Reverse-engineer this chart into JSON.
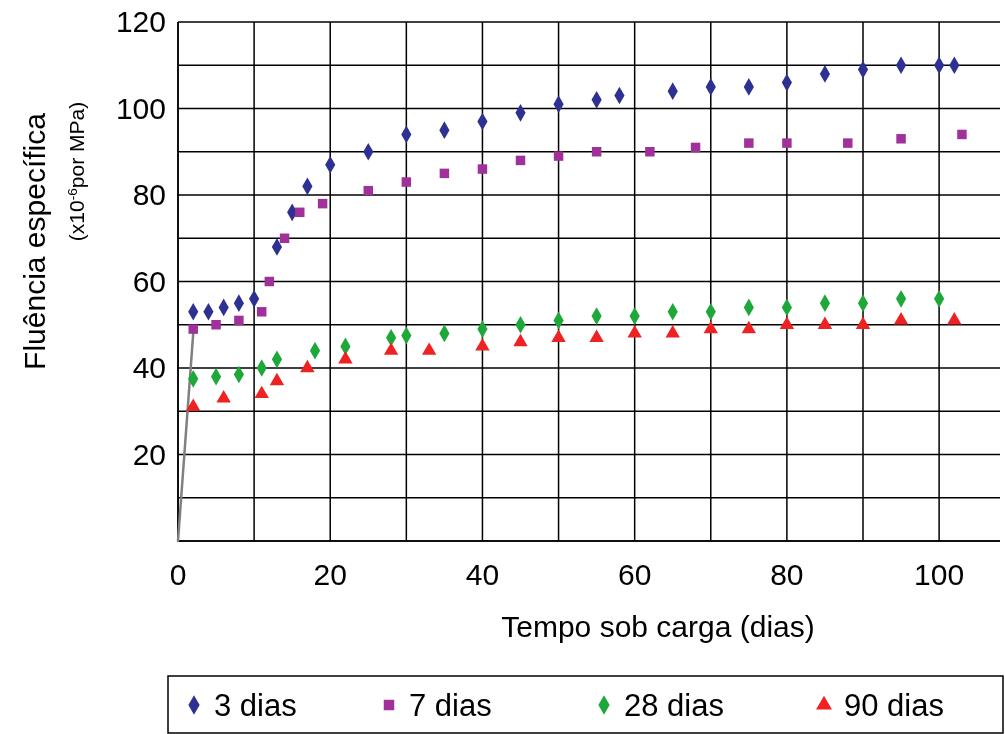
{
  "chart_data": {
    "type": "scatter",
    "xlabel": "Tempo sob carga (dias)",
    "ylabel": "Fluência específica\n(x10$^{-6}$por MPa)",
    "xlim": [
      0,
      108
    ],
    "ylim": [
      0,
      120
    ],
    "xticks": [
      0,
      {
        "value": 10,
        "label": null
      },
      20,
      {
        "value": 30,
        "label": null
      },
      40,
      {
        "value": 50,
        "label": null
      },
      60,
      {
        "value": 70,
        "label": null
      },
      80,
      {
        "value": 90,
        "label": null
      },
      100
    ],
    "yticks": [
      {
        "value": 0,
        "label": null
      },
      {
        "value": 10,
        "label": null
      },
      20,
      {
        "value": 30,
        "label": null
      },
      40,
      {
        "value": 50,
        "label": null
      },
      60,
      {
        "value": 70,
        "label": null
      },
      80,
      {
        "value": 90,
        "label": null
      },
      100,
      {
        "value": 110,
        "label": null
      },
      120
    ],
    "grid": true,
    "legend": "bottom",
    "series": [
      {
        "type": "line",
        "color": "#808080",
        "marker": "none",
        "x": [
          0,
          2
        ],
        "values": [
          0,
          48
        ]
      },
      {
        "name": "3 dias",
        "color": "#2e3192",
        "marker": "diamond",
        "x": [
          2,
          4,
          6,
          8,
          10,
          13,
          15,
          17,
          20,
          25,
          30,
          35,
          40,
          45,
          50,
          55,
          58,
          65,
          70,
          75,
          80,
          85,
          90,
          95,
          100,
          102
        ],
        "values": [
          53,
          53,
          54,
          55,
          56,
          68,
          76,
          82,
          87,
          90,
          94,
          95,
          97,
          99,
          101,
          102,
          103,
          104,
          105,
          105,
          106,
          108,
          109,
          110,
          110,
          110
        ]
      },
      {
        "name": "7 dias",
        "color": "#a0309a",
        "marker": "square",
        "x": [
          2,
          5,
          8,
          11,
          12,
          14,
          16,
          19,
          25,
          30,
          35,
          40,
          45,
          50,
          55,
          62,
          68,
          75,
          80,
          88,
          95,
          103
        ],
        "values": [
          49,
          50,
          51,
          53,
          60,
          70,
          76,
          78,
          81,
          83,
          85,
          86,
          88,
          89,
          90,
          90,
          91,
          92,
          92,
          92,
          93,
          94
        ]
      },
      {
        "name": "28 dias",
        "color": "#1fa83a",
        "marker": "diamond",
        "x": [
          2,
          5,
          8,
          11,
          13,
          18,
          22,
          28,
          30,
          35,
          40,
          45,
          50,
          55,
          60,
          65,
          70,
          75,
          80,
          85,
          90,
          95,
          100
        ],
        "values": [
          37.5,
          38,
          38.5,
          40,
          42,
          44,
          45,
          47,
          47.5,
          48,
          49,
          50,
          51,
          52,
          52,
          53,
          53,
          54,
          54,
          55,
          55,
          56,
          56
        ]
      },
      {
        "name": "90 dias",
        "color": "#ee2222",
        "marker": "triangle",
        "x": [
          2,
          6,
          11,
          13,
          17,
          22,
          28,
          33,
          40,
          45,
          50,
          55,
          60,
          65,
          70,
          75,
          80,
          85,
          90,
          95,
          102
        ],
        "values": [
          31,
          33,
          34,
          37,
          40,
          42,
          44,
          44,
          45,
          46,
          47,
          47,
          48,
          48,
          49,
          49,
          50,
          50,
          50,
          51,
          51
        ]
      }
    ]
  }
}
